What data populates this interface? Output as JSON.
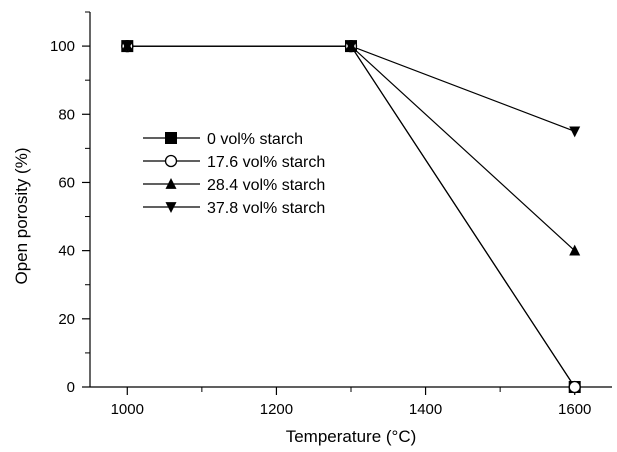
{
  "chart_data": {
    "type": "line",
    "title": "",
    "xlabel": "Temperature (°C)",
    "ylabel": "Open porosity (%)",
    "xlim": [
      950,
      1650
    ],
    "ylim": [
      0,
      110
    ],
    "xticks": [
      1000,
      1200,
      1400,
      1600
    ],
    "xticks_minor": [
      1100,
      1300,
      1500
    ],
    "yticks": [
      0,
      20,
      40,
      60,
      80,
      100
    ],
    "yticks_minor": [
      10,
      30,
      50,
      70,
      90,
      110
    ],
    "grid": false,
    "legend_position": "center-left",
    "x": [
      1000,
      1300,
      1600
    ],
    "series": [
      {
        "name": "0 vol% starch",
        "marker": "square-filled",
        "values": [
          100,
          100,
          0
        ]
      },
      {
        "name": "17.6 vol% starch",
        "marker": "circle-open",
        "values": [
          100,
          100,
          0
        ]
      },
      {
        "name": "28.4 vol% starch",
        "marker": "triangle-up-filled",
        "values": [
          100,
          100,
          40
        ]
      },
      {
        "name": "37.8 vol% starch",
        "marker": "triangle-down-filled",
        "values": [
          100,
          100,
          75
        ]
      }
    ],
    "colors": {
      "line": "#000000",
      "background": "#ffffff"
    }
  }
}
